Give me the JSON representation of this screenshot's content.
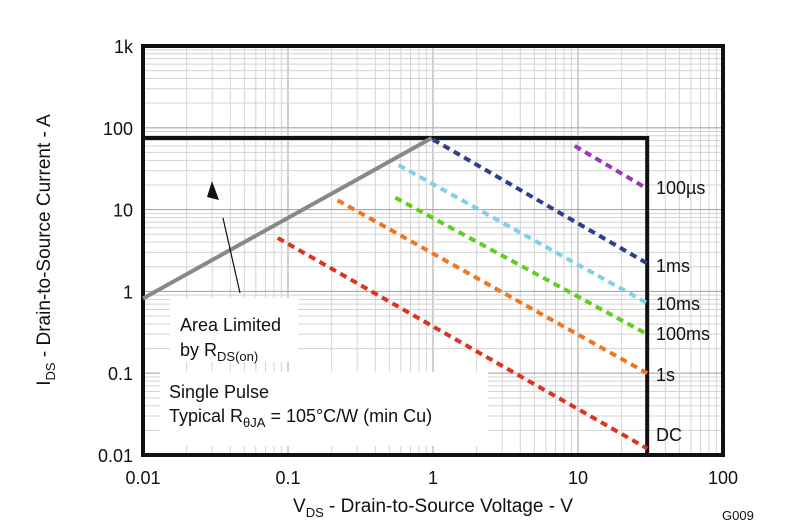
{
  "chart_data": {
    "type": "line",
    "code": "G009",
    "x_scale": "log",
    "y_scale": "log",
    "xlim": [
      0.01,
      100
    ],
    "ylim": [
      0.01,
      1000
    ],
    "grid": true,
    "x_ticks": [
      "0.01",
      "0.1",
      "1",
      "10",
      "100"
    ],
    "y_ticks": [
      "0.01",
      "0.1",
      "1",
      "10",
      "100",
      "1k"
    ],
    "xlabel": {
      "main": "V",
      "sub": "DS",
      "rest": " - Drain-to-Source Voltage - V"
    },
    "ylabel": {
      "main": "I",
      "sub": "DS",
      "rest": " - Drain-to-Source Current - A"
    },
    "boundary": {
      "vds_max": 30,
      "ids_max": 75
    },
    "rds_on_line": {
      "x": [
        0.01,
        0.98
      ],
      "y": [
        0.82,
        75
      ],
      "color": "#888888"
    },
    "series": [
      {
        "name": "100µs",
        "x": [
          9.5,
          30
        ],
        "y": [
          60,
          18
        ],
        "color": "#9a38b8"
      },
      {
        "name": "1ms",
        "x": [
          1.0,
          30
        ],
        "y": [
          72,
          2.2
        ],
        "color": "#2e3f8f"
      },
      {
        "name": "10ms",
        "x": [
          0.58,
          30
        ],
        "y": [
          35,
          0.72
        ],
        "color": "#7fd0ec"
      },
      {
        "name": "100ms",
        "x": [
          0.55,
          30
        ],
        "y": [
          14,
          0.3
        ],
        "color": "#66cc22"
      },
      {
        "name": "1s",
        "x": [
          0.22,
          30
        ],
        "y": [
          13,
          0.1
        ],
        "color": "#ee7722"
      },
      {
        "name": "DC",
        "x": [
          0.085,
          30
        ],
        "y": [
          4.5,
          0.012
        ],
        "color": "#dd3322"
      }
    ],
    "series_labels": [
      {
        "label": "100",
        "unit": "µs"
      },
      {
        "label": "1ms"
      },
      {
        "label": "10ms"
      },
      {
        "label": "100ms"
      },
      {
        "label": "1s"
      },
      {
        "label": "DC"
      }
    ],
    "annotations": {
      "area_limited": {
        "line1": "Area Limited",
        "line2_main": "by R",
        "line2_sub": "DS(on)"
      },
      "pulse": {
        "line1": "Single Pulse",
        "line2_main": "Typical R",
        "line2_sub": "θJA",
        "line2_rest": " = 105°C/W (min Cu)"
      }
    }
  }
}
